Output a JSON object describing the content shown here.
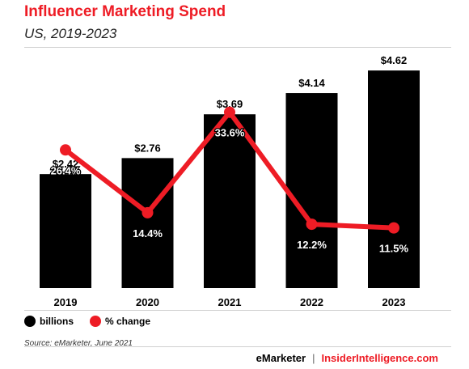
{
  "colors": {
    "accent": "#ee1c25",
    "bar": "#000000"
  },
  "footer": {
    "brand1": "eMarketer",
    "separator": "|",
    "brand2": "InsiderIntelligence.com"
  },
  "chart_data": {
    "type": "bar",
    "title": "Influencer Marketing Spend",
    "subtitle": "US, 2019-2023",
    "categories": [
      "2019",
      "2020",
      "2021",
      "2022",
      "2023"
    ],
    "series": [
      {
        "name": "billions",
        "type": "bar",
        "values": [
          2.42,
          2.76,
          3.69,
          4.14,
          4.62
        ],
        "labels": [
          "$2.42",
          "$2.76",
          "$3.69",
          "$4.14",
          "$4.62"
        ]
      },
      {
        "name": "% change",
        "type": "line",
        "values": [
          26.4,
          14.4,
          33.6,
          12.2,
          11.5
        ],
        "labels": [
          "26.4%",
          "14.4%",
          "33.6%",
          "12.2%",
          "11.5%"
        ]
      }
    ],
    "ylim": [
      0,
      5
    ],
    "line_ylim": [
      0,
      45
    ],
    "legend": "bottom-left",
    "grid": false,
    "source": "Source: eMarketer, June 2021"
  }
}
